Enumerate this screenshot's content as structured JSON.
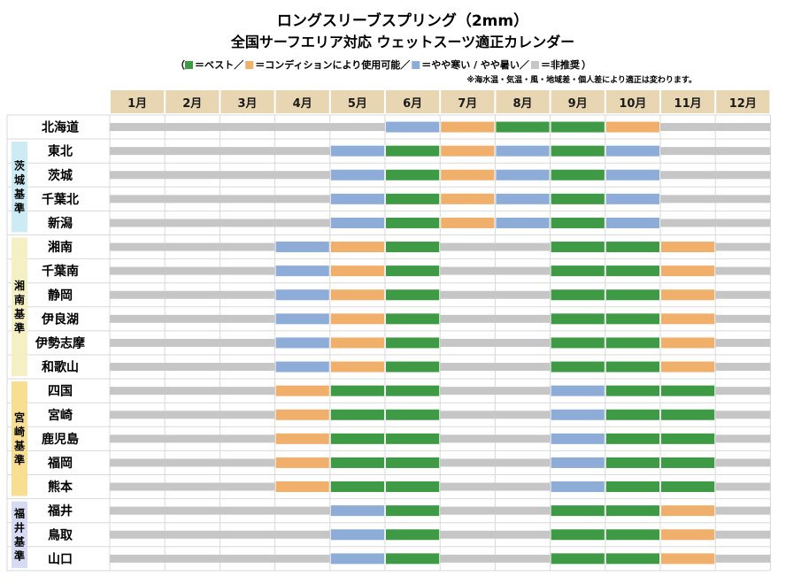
{
  "chart_data": {
    "type": "timeline",
    "title": "ロングスリーブスプリング（2mm）",
    "subtitle": "全国サーフエリア対応 ウェットスーツ適正カレンダー",
    "legend": {
      "prefix": "（",
      "suffix": "）",
      "items": [
        {
          "key": "best",
          "label": "＝ベスト／",
          "color": "#3f9a45"
        },
        {
          "key": "ok",
          "label": "＝コンディションにより使用可能／",
          "color": "#f0b06c"
        },
        {
          "key": "edge",
          "label": "＝やや寒い / やや暑い／",
          "color": "#8eacd8"
        },
        {
          "key": "no",
          "label": "＝非推奨",
          "color": "#c6c6c6"
        }
      ]
    },
    "note": "※海水温・気温・風・地域差・個人差により適正は変わります。",
    "months": [
      "1月",
      "2月",
      "3月",
      "4月",
      "5月",
      "6月",
      "7月",
      "8月",
      "9月",
      "10月",
      "11月",
      "12月"
    ],
    "colors": {
      "header_bg": "#e8d6b3",
      "grid": "#d9d9d9",
      "best": "#3f9a45",
      "ok": "#f0b06c",
      "edge": "#8eacd8",
      "no": "#c6c6c6"
    },
    "groups": [
      {
        "label": "",
        "color": "#ffffff",
        "rows": [
          {
            "name": "北海道",
            "months": [
              "no",
              "no",
              "no",
              "no",
              "no",
              "edge",
              "ok",
              "best",
              "best",
              "ok",
              "no",
              "no"
            ]
          }
        ]
      },
      {
        "label": "茨城基準",
        "color": "#cdebf5",
        "rows": [
          {
            "name": "東北",
            "months": [
              "no",
              "no",
              "no",
              "no",
              "edge",
              "best",
              "ok",
              "edge",
              "best",
              "edge",
              "no",
              "no"
            ]
          },
          {
            "name": "茨城",
            "months": [
              "no",
              "no",
              "no",
              "no",
              "edge",
              "best",
              "ok",
              "edge",
              "best",
              "edge",
              "no",
              "no"
            ]
          },
          {
            "name": "千葉北",
            "months": [
              "no",
              "no",
              "no",
              "no",
              "edge",
              "best",
              "ok",
              "edge",
              "best",
              "edge",
              "no",
              "no"
            ]
          },
          {
            "name": "新潟",
            "months": [
              "no",
              "no",
              "no",
              "no",
              "edge",
              "best",
              "ok",
              "edge",
              "best",
              "edge",
              "no",
              "no"
            ]
          }
        ]
      },
      {
        "label": "湘南基準",
        "color": "#f5f0c4",
        "rows": [
          {
            "name": "湘南",
            "months": [
              "no",
              "no",
              "no",
              "edge",
              "ok",
              "best",
              "no",
              "no",
              "best",
              "best",
              "ok",
              "no"
            ]
          },
          {
            "name": "千葉南",
            "months": [
              "no",
              "no",
              "no",
              "edge",
              "ok",
              "best",
              "no",
              "no",
              "best",
              "best",
              "ok",
              "no"
            ]
          },
          {
            "name": "静岡",
            "months": [
              "no",
              "no",
              "no",
              "edge",
              "ok",
              "best",
              "no",
              "no",
              "best",
              "best",
              "ok",
              "no"
            ]
          },
          {
            "name": "伊良湖",
            "months": [
              "no",
              "no",
              "no",
              "edge",
              "ok",
              "best",
              "no",
              "no",
              "best",
              "best",
              "ok",
              "no"
            ]
          },
          {
            "name": "伊勢志摩",
            "months": [
              "no",
              "no",
              "no",
              "edge",
              "ok",
              "best",
              "no",
              "no",
              "best",
              "best",
              "ok",
              "no"
            ]
          },
          {
            "name": "和歌山",
            "months": [
              "no",
              "no",
              "no",
              "edge",
              "ok",
              "best",
              "no",
              "no",
              "best",
              "best",
              "ok",
              "no"
            ]
          }
        ]
      },
      {
        "label": "宮崎基準",
        "color": "#f8de90",
        "rows": [
          {
            "name": "四国",
            "months": [
              "no",
              "no",
              "no",
              "ok",
              "best",
              "best",
              "no",
              "no",
              "edge",
              "best",
              "best",
              "no"
            ]
          },
          {
            "name": "宮崎",
            "months": [
              "no",
              "no",
              "no",
              "ok",
              "best",
              "best",
              "no",
              "no",
              "edge",
              "best",
              "best",
              "no"
            ]
          },
          {
            "name": "鹿児島",
            "months": [
              "no",
              "no",
              "no",
              "ok",
              "best",
              "best",
              "no",
              "no",
              "edge",
              "best",
              "best",
              "no"
            ]
          },
          {
            "name": "福岡",
            "months": [
              "no",
              "no",
              "no",
              "ok",
              "best",
              "best",
              "no",
              "no",
              "edge",
              "best",
              "best",
              "no"
            ]
          },
          {
            "name": "熊本",
            "months": [
              "no",
              "no",
              "no",
              "ok",
              "best",
              "best",
              "no",
              "no",
              "edge",
              "best",
              "best",
              "no"
            ]
          }
        ]
      },
      {
        "label": "福井基準",
        "color": "#d6daf3",
        "rows": [
          {
            "name": "福井",
            "months": [
              "no",
              "no",
              "no",
              "no",
              "edge",
              "best",
              "no",
              "no",
              "best",
              "best",
              "ok",
              "no"
            ]
          },
          {
            "name": "鳥取",
            "months": [
              "no",
              "no",
              "no",
              "no",
              "edge",
              "best",
              "no",
              "no",
              "best",
              "best",
              "ok",
              "no"
            ]
          },
          {
            "name": "山口",
            "months": [
              "no",
              "no",
              "no",
              "no",
              "edge",
              "best",
              "no",
              "no",
              "best",
              "best",
              "ok",
              "no"
            ]
          }
        ]
      }
    ]
  }
}
